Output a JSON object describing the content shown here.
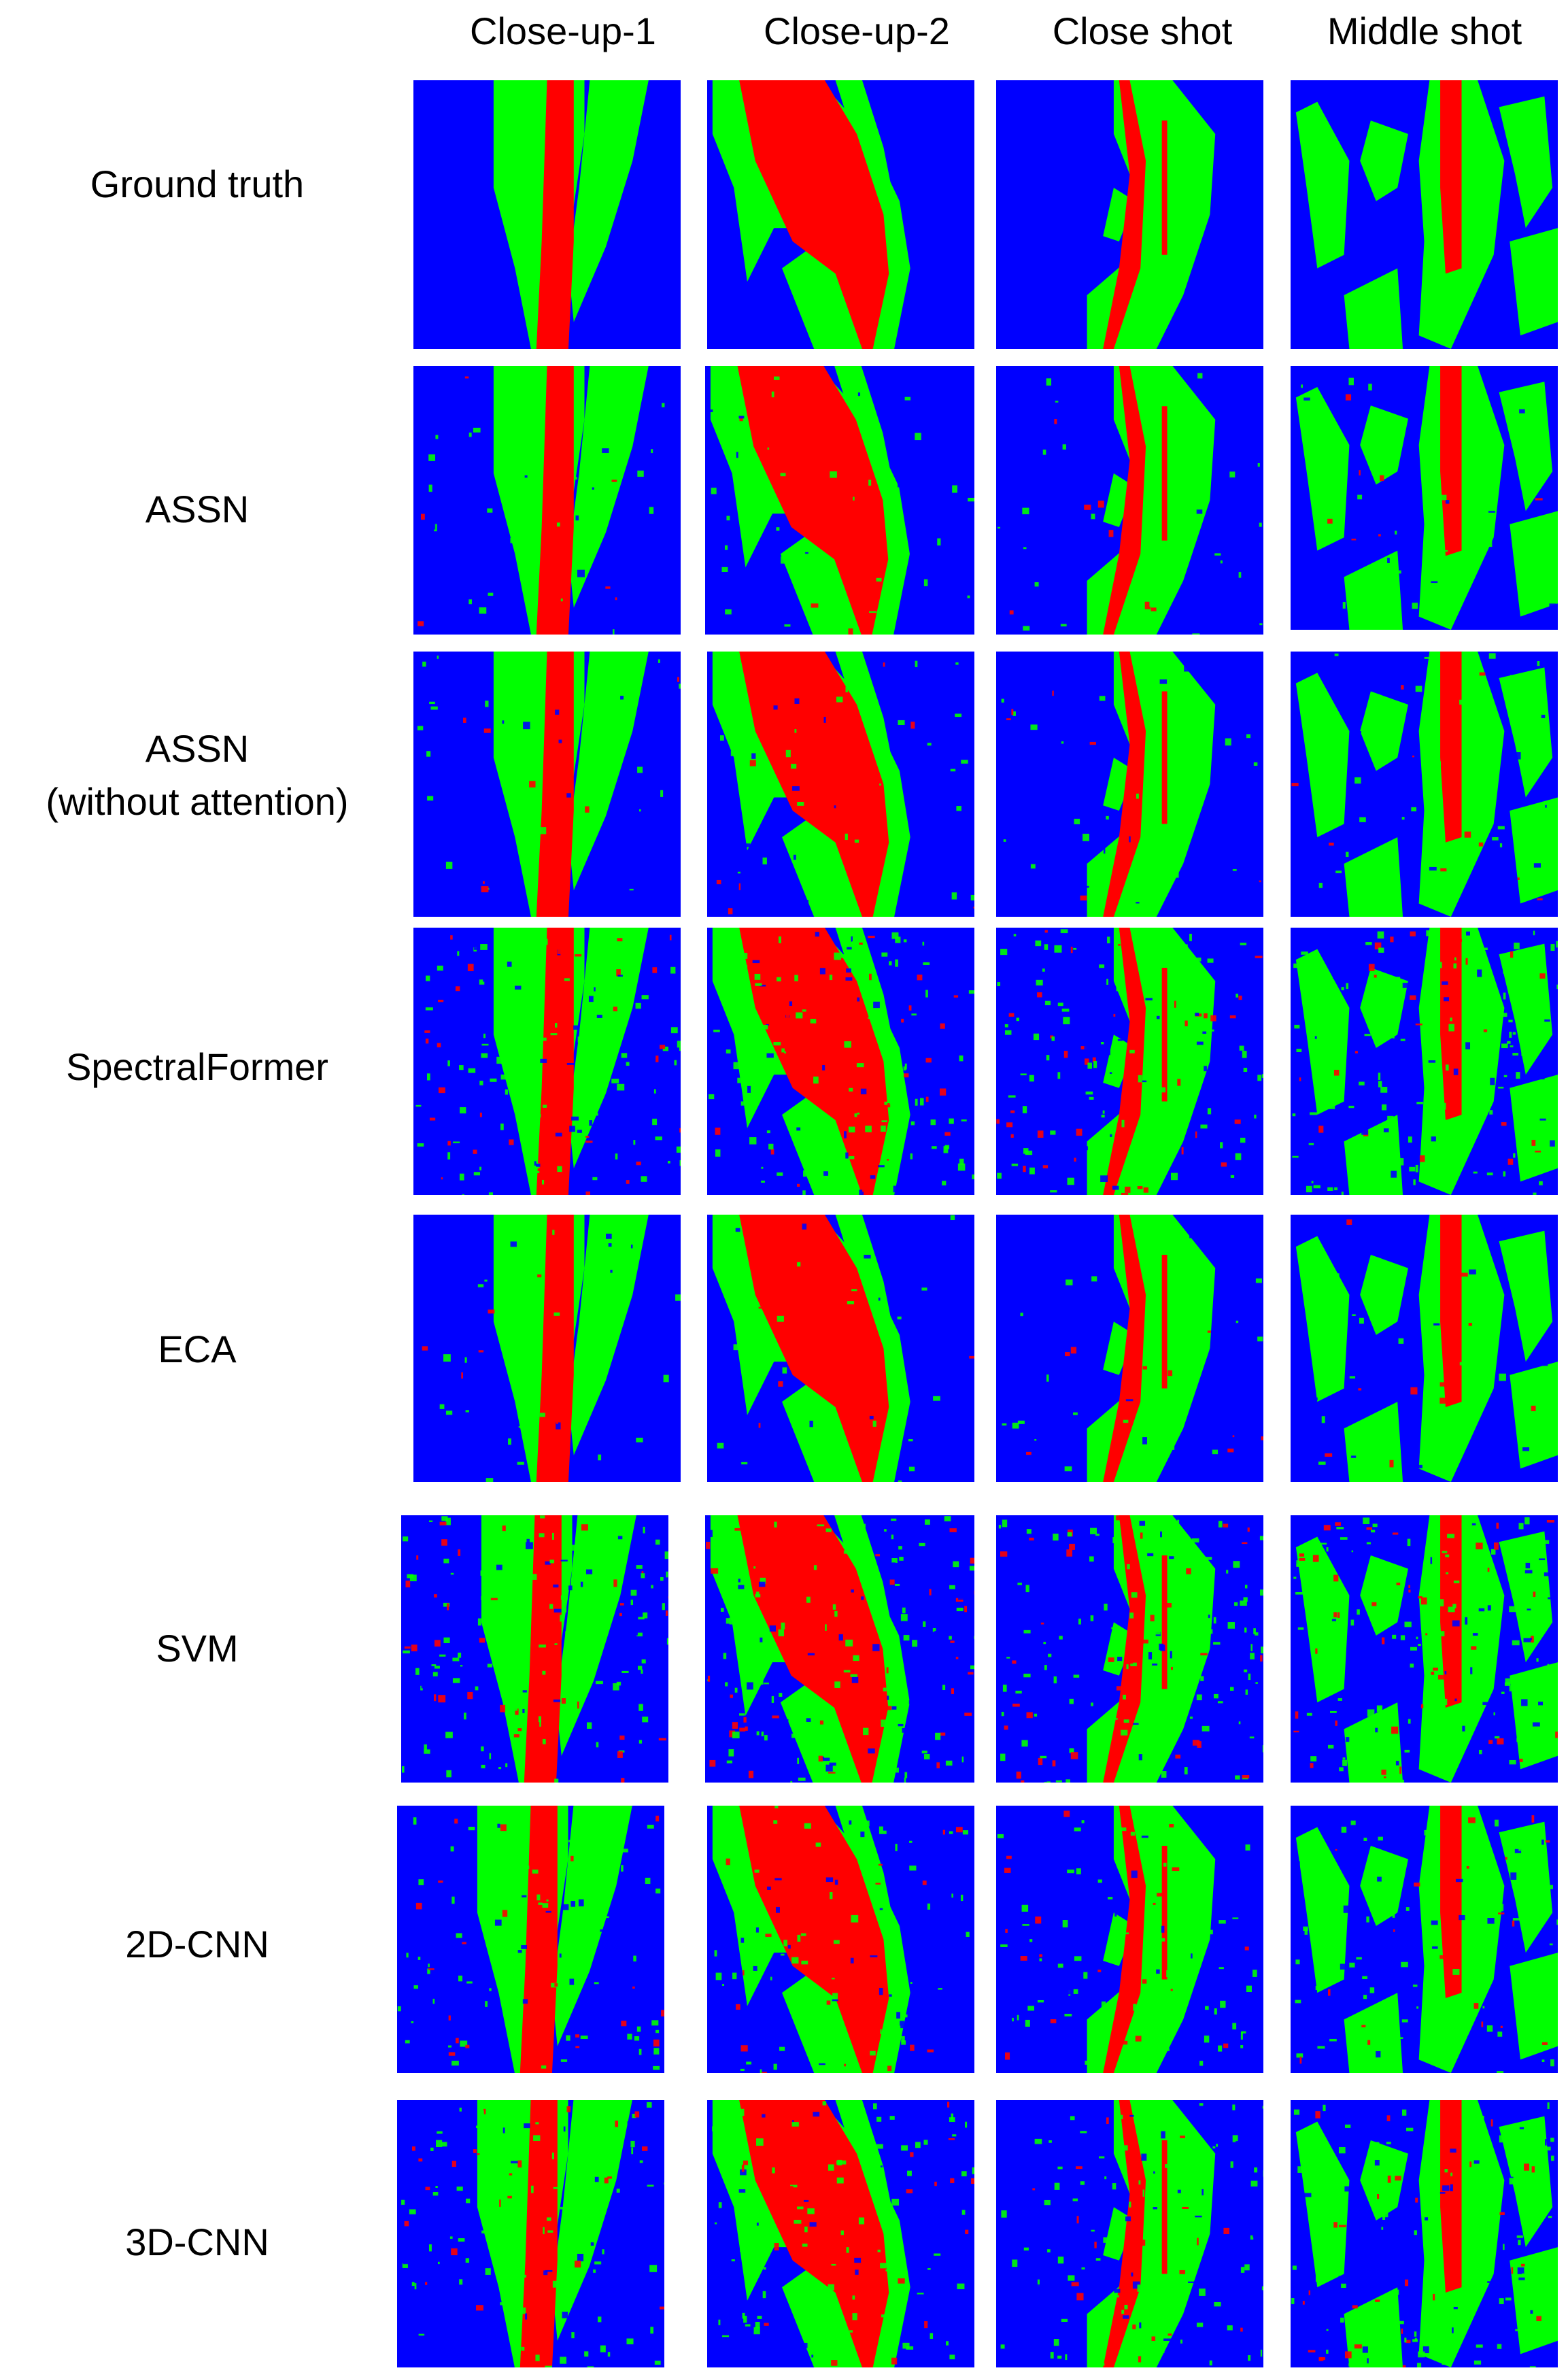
{
  "columns": [
    "Close-up-1",
    "Close-up-2",
    "Close shot",
    "Middle shot"
  ],
  "rows": [
    {
      "label_line1": "Ground truth",
      "label_line2": ""
    },
    {
      "label_line1": "ASSN",
      "label_line2": ""
    },
    {
      "label_line1": "ASSN",
      "label_line2": "(without attention)"
    },
    {
      "label_line1": "SpectralFormer",
      "label_line2": ""
    },
    {
      "label_line1": "ECA",
      "label_line2": ""
    },
    {
      "label_line1": "SVM",
      "label_line2": ""
    },
    {
      "label_line1": "2D-CNN",
      "label_line2": ""
    },
    {
      "label_line1": "3D-CNN",
      "label_line2": ""
    }
  ],
  "class_colors": {
    "background": "#0000ff",
    "leaf": "#00ff00",
    "stem": "#ff0000"
  }
}
